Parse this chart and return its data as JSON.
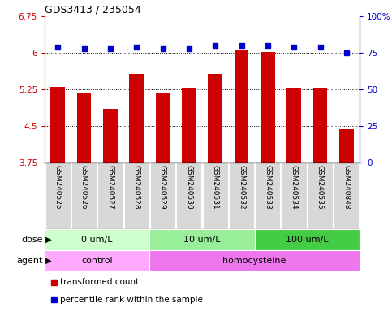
{
  "title": "GDS3413 / 235054",
  "samples": [
    "GSM240525",
    "GSM240526",
    "GSM240527",
    "GSM240528",
    "GSM240529",
    "GSM240530",
    "GSM240531",
    "GSM240532",
    "GSM240533",
    "GSM240534",
    "GSM240535",
    "GSM240848"
  ],
  "bar_values": [
    5.3,
    5.18,
    4.85,
    5.57,
    5.18,
    5.28,
    5.57,
    6.05,
    6.02,
    5.28,
    5.28,
    4.44
  ],
  "dot_values": [
    79,
    78,
    78,
    79,
    78,
    78,
    80,
    80,
    80,
    79,
    79,
    75
  ],
  "bar_color": "#cc0000",
  "dot_color": "#0000cc",
  "ylim_left": [
    3.75,
    6.75
  ],
  "ylim_right": [
    0,
    100
  ],
  "yticks_left": [
    3.75,
    4.5,
    5.25,
    6.0,
    6.75
  ],
  "ytick_labels_left": [
    "3.75",
    "4.5",
    "5.25",
    "6",
    "6.75"
  ],
  "yticks_right": [
    0,
    25,
    50,
    75,
    100
  ],
  "ytick_labels_right": [
    "0",
    "25",
    "50",
    "75",
    "100%"
  ],
  "hlines": [
    4.5,
    5.25,
    6.0
  ],
  "dose_groups": [
    {
      "label": "0 um/L",
      "start": 0,
      "end": 4,
      "color": "#ccffcc"
    },
    {
      "label": "10 um/L",
      "start": 4,
      "end": 8,
      "color": "#99ee99"
    },
    {
      "label": "100 um/L",
      "start": 8,
      "end": 12,
      "color": "#44cc44"
    }
  ],
  "agent_groups": [
    {
      "label": "control",
      "start": 0,
      "end": 4,
      "color": "#ffaaff"
    },
    {
      "label": "homocysteine",
      "start": 4,
      "end": 12,
      "color": "#ee77ee"
    }
  ],
  "dose_label": "dose",
  "agent_label": "agent",
  "legend_bar_label": "transformed count",
  "legend_dot_label": "percentile rank within the sample",
  "sample_bg_color": "#d8d8d8",
  "sample_border_color": "white"
}
